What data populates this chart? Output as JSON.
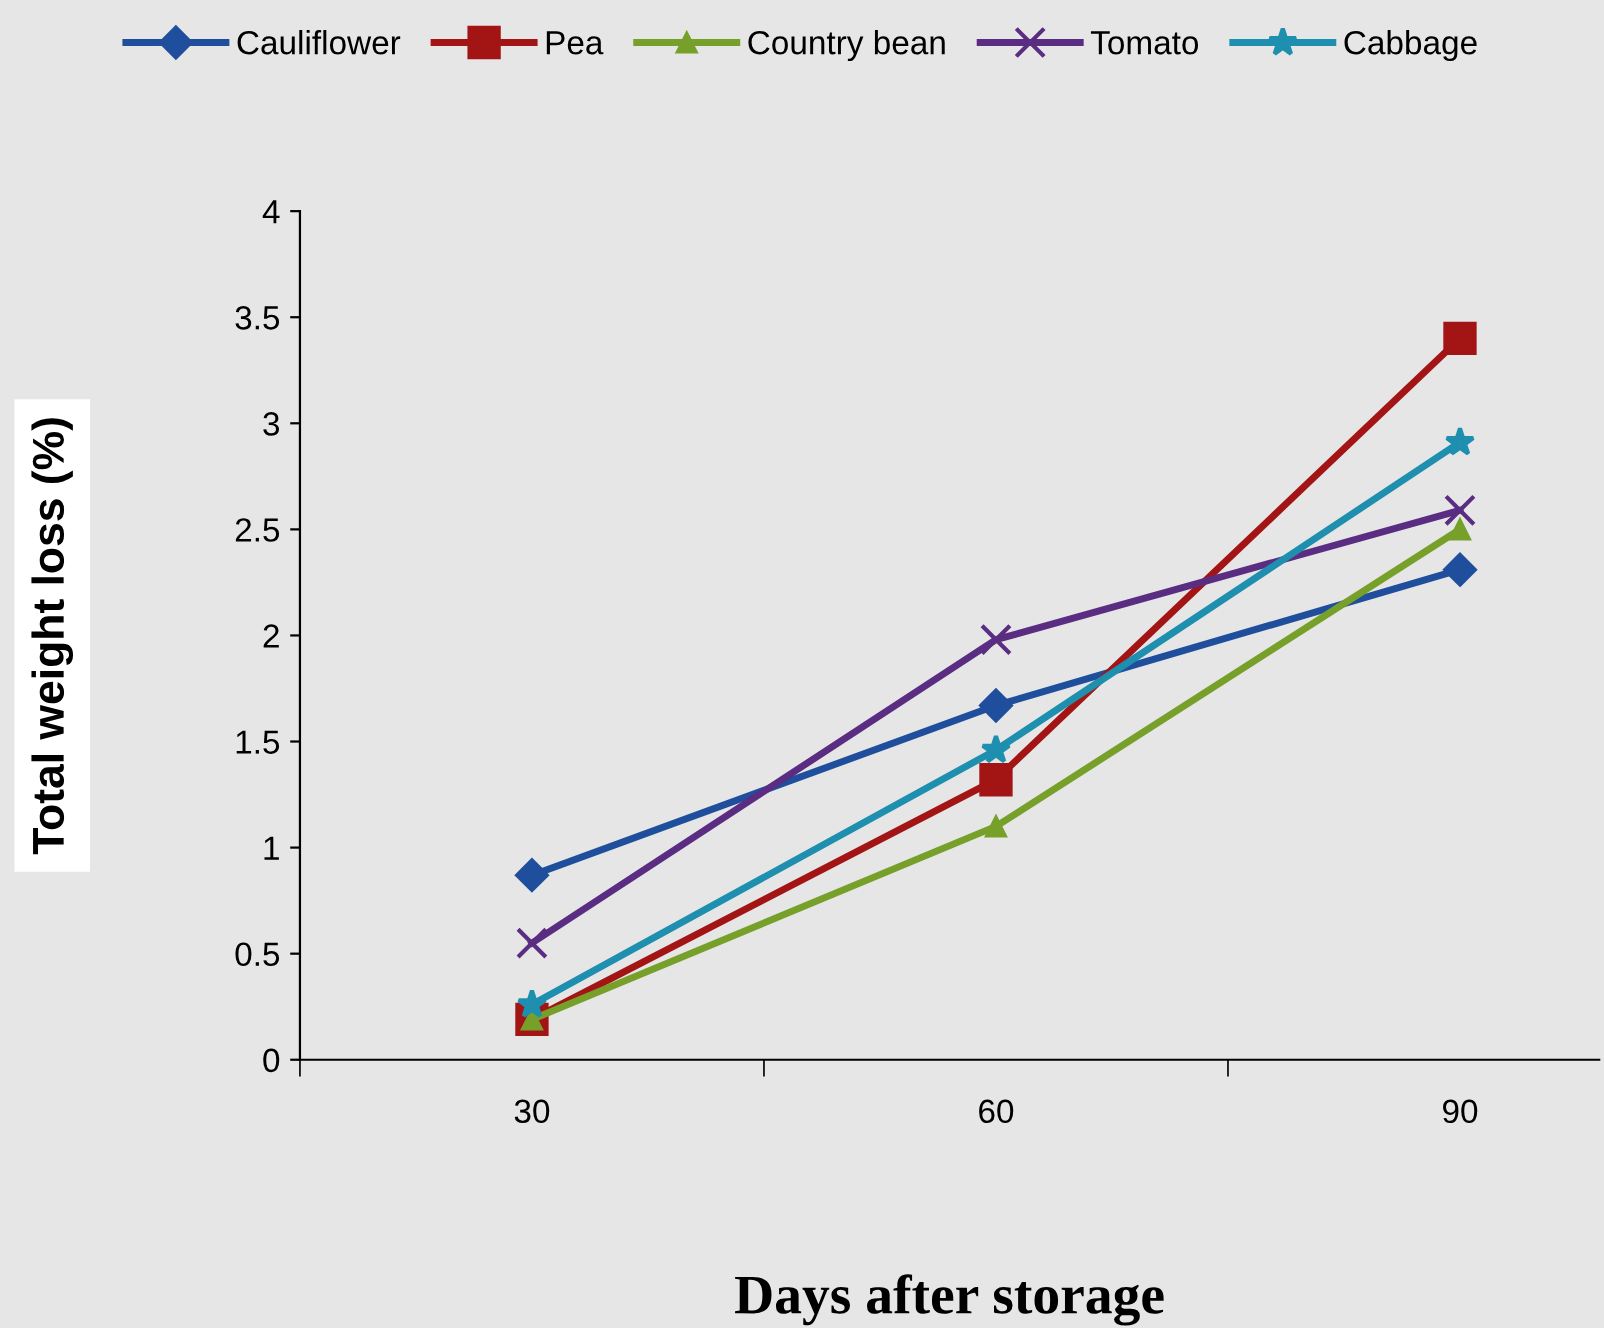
{
  "chart_data": {
    "type": "line",
    "xlabel": "Days after storage",
    "ylabel": "Total weight loss (%)",
    "categories": [
      "30",
      "60",
      "90"
    ],
    "series": [
      {
        "name": "Cauliflower",
        "color": "#1f4e9c",
        "marker": "diamond",
        "values": [
          0.87,
          1.67,
          2.31
        ]
      },
      {
        "name": "Pea",
        "color": "#a31515",
        "marker": "square",
        "values": [
          0.19,
          1.32,
          3.4
        ]
      },
      {
        "name": "Country bean",
        "color": "#77a02a",
        "marker": "triangle",
        "values": [
          0.19,
          1.1,
          2.5
        ]
      },
      {
        "name": "Tomato",
        "color": "#5a2d82",
        "marker": "cross",
        "values": [
          0.55,
          1.98,
          2.59
        ]
      },
      {
        "name": "Cabbage",
        "color": "#1e8fae",
        "marker": "star",
        "values": [
          0.26,
          1.46,
          2.91
        ]
      }
    ],
    "ylim": [
      0,
      4
    ],
    "yticks": [
      0,
      0.5,
      1,
      1.5,
      2,
      2.5,
      3,
      3.5,
      4
    ],
    "grid": false,
    "legend": "top",
    "line_style": "solid"
  }
}
